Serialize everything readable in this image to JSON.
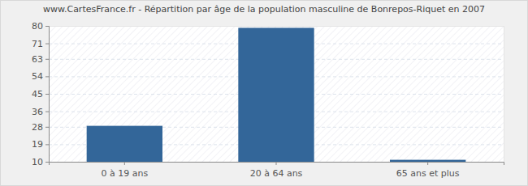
{
  "chart_data": {
    "type": "bar",
    "title": "www.CartesFrance.fr - Répartition par âge de la population masculine de Bonrepos-Riquet en 2007",
    "categories": [
      "0 à 19 ans",
      "20 à 64 ans",
      "65 ans et plus"
    ],
    "values": [
      28.5,
      79,
      11
    ],
    "color": "#336699",
    "ylim": [
      10,
      80
    ],
    "yticks": [
      10,
      19,
      28,
      36,
      45,
      54,
      63,
      71,
      80
    ],
    "grid": true
  }
}
